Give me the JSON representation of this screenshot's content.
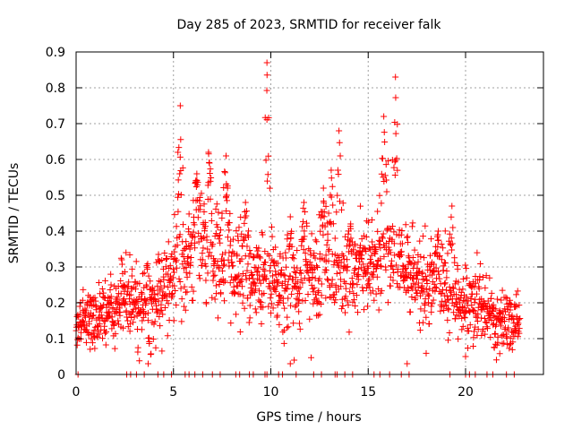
{
  "chart_data": {
    "type": "scatter",
    "title": "Day 285 of 2023, SRMTID for receiver falk",
    "xlabel": "GPS time / hours",
    "ylabel": "SRMTID / TECUs",
    "xlim": [
      0,
      24
    ],
    "ylim": [
      0,
      0.9
    ],
    "xticks": [
      0,
      5,
      10,
      15,
      20
    ],
    "xtick_labels": [
      "0",
      "5",
      "10",
      "15",
      "20"
    ],
    "yticks": [
      0,
      0.1,
      0.2,
      0.3,
      0.4,
      0.5,
      0.6,
      0.7,
      0.8,
      0.9
    ],
    "ytick_labels": [
      "0",
      "0.1",
      "0.2",
      "0.3",
      "0.4",
      "0.5",
      "0.6",
      "0.7",
      "0.8",
      "0.9"
    ],
    "grid": true,
    "marker": "+",
    "color": "#ff0000",
    "trend": [
      [
        0.0,
        0.12
      ],
      [
        0.5,
        0.17
      ],
      [
        1.0,
        0.16
      ],
      [
        1.5,
        0.17
      ],
      [
        2.0,
        0.19
      ],
      [
        2.5,
        0.22
      ],
      [
        3.0,
        0.21
      ],
      [
        3.5,
        0.2
      ],
      [
        4.0,
        0.2
      ],
      [
        4.5,
        0.23
      ],
      [
        5.0,
        0.28
      ],
      [
        5.5,
        0.31
      ],
      [
        6.0,
        0.33
      ],
      [
        6.5,
        0.36
      ],
      [
        7.0,
        0.33
      ],
      [
        7.5,
        0.3
      ],
      [
        8.0,
        0.28
      ],
      [
        8.5,
        0.28
      ],
      [
        9.0,
        0.27
      ],
      [
        9.5,
        0.27
      ],
      [
        10.0,
        0.26
      ],
      [
        10.5,
        0.24
      ],
      [
        11.0,
        0.25
      ],
      [
        11.5,
        0.27
      ],
      [
        12.0,
        0.28
      ],
      [
        12.5,
        0.28
      ],
      [
        13.0,
        0.29
      ],
      [
        13.5,
        0.28
      ],
      [
        14.0,
        0.27
      ],
      [
        14.5,
        0.28
      ],
      [
        15.0,
        0.28
      ],
      [
        15.5,
        0.32
      ],
      [
        16.0,
        0.36
      ],
      [
        16.5,
        0.33
      ],
      [
        17.0,
        0.28
      ],
      [
        17.5,
        0.25
      ],
      [
        18.0,
        0.24
      ],
      [
        18.5,
        0.27
      ],
      [
        19.0,
        0.25
      ],
      [
        19.5,
        0.22
      ],
      [
        20.0,
        0.2
      ],
      [
        20.5,
        0.2
      ],
      [
        21.0,
        0.19
      ],
      [
        21.5,
        0.15
      ],
      [
        22.0,
        0.14
      ],
      [
        22.5,
        0.14
      ],
      [
        22.8,
        0.15
      ]
    ],
    "spread": [
      [
        0.0,
        0.04
      ],
      [
        2.0,
        0.06
      ],
      [
        4.0,
        0.07
      ],
      [
        5.0,
        0.09
      ],
      [
        7.0,
        0.09
      ],
      [
        9.0,
        0.08
      ],
      [
        12.0,
        0.08
      ],
      [
        15.0,
        0.08
      ],
      [
        17.0,
        0.07
      ],
      [
        19.0,
        0.07
      ],
      [
        20.0,
        0.06
      ],
      [
        22.8,
        0.05
      ]
    ],
    "sample_count": 1750,
    "spikes": [
      {
        "x": 5.35,
        "peak": 0.75,
        "width": 0.25
      },
      {
        "x": 6.2,
        "peak": 0.56,
        "width": 0.5
      },
      {
        "x": 6.8,
        "peak": 0.62,
        "width": 0.3
      },
      {
        "x": 7.7,
        "peak": 0.61,
        "width": 0.3
      },
      {
        "x": 8.7,
        "peak": 0.48,
        "width": 0.3
      },
      {
        "x": 9.8,
        "peak": 0.87,
        "width": 0.22
      },
      {
        "x": 11.0,
        "peak": 0.44,
        "width": 0.3
      },
      {
        "x": 11.7,
        "peak": 0.48,
        "width": 0.3
      },
      {
        "x": 12.7,
        "peak": 0.52,
        "width": 0.3
      },
      {
        "x": 13.1,
        "peak": 0.57,
        "width": 0.25
      },
      {
        "x": 13.5,
        "peak": 0.68,
        "width": 0.3
      },
      {
        "x": 14.1,
        "peak": 0.42,
        "width": 0.3
      },
      {
        "x": 14.6,
        "peak": 0.36,
        "width": 0.3
      },
      {
        "x": 15.8,
        "peak": 0.72,
        "width": 0.35
      },
      {
        "x": 16.4,
        "peak": 0.83,
        "width": 0.25
      },
      {
        "x": 18.6,
        "peak": 0.4,
        "width": 0.3
      },
      {
        "x": 19.3,
        "peak": 0.47,
        "width": 0.3
      }
    ],
    "zero_values_x": [
      0.1,
      2.6,
      2.8,
      3.1,
      3.5,
      4.2,
      4.5,
      4.9,
      5.6,
      5.8,
      6.1,
      6.5,
      7.0,
      7.4,
      8.2,
      8.4,
      8.9,
      9.1,
      9.7,
      9.8,
      10.4,
      10.6,
      11.3,
      12.2,
      12.6,
      13.3,
      13.4,
      13.8,
      14.2,
      15.3,
      15.6,
      16.1,
      16.7,
      17.1,
      19.2,
      20.0,
      20.2,
      20.5,
      21.1,
      21.4,
      22.1,
      22.5
    ],
    "isolated_points": [
      [
        3.7,
        0.03
      ],
      [
        11.0,
        0.03
      ],
      [
        11.2,
        0.04
      ],
      [
        17.0,
        0.03
      ],
      [
        20.0,
        0.05
      ]
    ]
  }
}
